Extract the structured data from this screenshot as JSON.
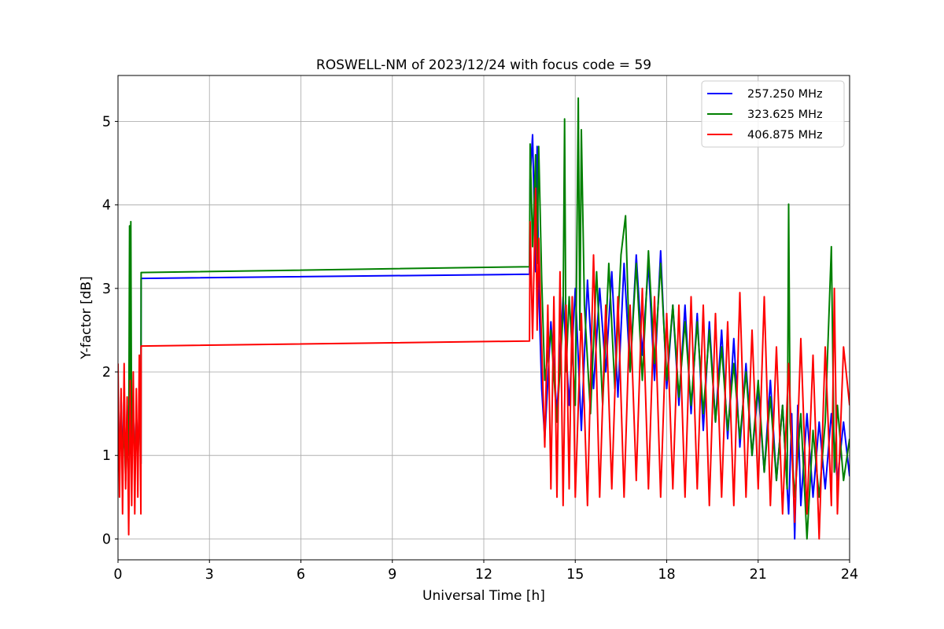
{
  "chart_data": {
    "type": "line",
    "title": "ROSWELL-NM of 2023/12/24 with focus code = 59",
    "xlabel": "Universal Time [h]",
    "ylabel": "Y-factor [dB]",
    "xlim": [
      0,
      24
    ],
    "ylim": [
      -0.25,
      5.55
    ],
    "xticks": [
      0,
      3,
      6,
      9,
      12,
      15,
      18,
      21,
      24
    ],
    "xtick_labels": [
      "0",
      "3",
      "6",
      "9",
      "12",
      "15",
      "18",
      "21",
      "24"
    ],
    "yticks": [
      0,
      1,
      2,
      3,
      4,
      5
    ],
    "ytick_labels": [
      "0",
      "1",
      "2",
      "3",
      "4",
      "5"
    ],
    "grid": true,
    "legend_position": "top-right",
    "series": [
      {
        "name": "257.250 MHz",
        "color": "#0000ff",
        "x": [
          0.0,
          0.05,
          0.1,
          0.15,
          0.2,
          0.25,
          0.3,
          0.35,
          0.4,
          0.45,
          0.5,
          0.55,
          0.6,
          0.65,
          0.7,
          0.75,
          0.76,
          13.5,
          13.52,
          13.6,
          13.7,
          13.75,
          13.8,
          13.9,
          14.0,
          14.2,
          14.4,
          14.6,
          14.8,
          15.0,
          15.2,
          15.4,
          15.6,
          15.8,
          16.0,
          16.2,
          16.4,
          16.6,
          16.8,
          17.0,
          17.2,
          17.4,
          17.6,
          17.8,
          18.0,
          18.2,
          18.4,
          18.6,
          18.8,
          19.0,
          19.2,
          19.4,
          19.6,
          19.8,
          20.0,
          20.2,
          20.4,
          20.6,
          20.8,
          21.0,
          21.2,
          21.4,
          21.6,
          21.8,
          22.0,
          22.1,
          22.2,
          22.3,
          22.4,
          22.6,
          22.8,
          23.0,
          23.2,
          23.4,
          23.6,
          23.8,
          24.0
        ],
        "y": [
          1.6,
          0.9,
          1.7,
          1.0,
          1.5,
          0.8,
          1.6,
          1.1,
          1.4,
          0.9,
          1.7,
          0.8,
          1.5,
          1.0,
          1.6,
          0.9,
          3.12,
          3.17,
          4.3,
          4.84,
          3.2,
          4.7,
          3.0,
          1.8,
          1.2,
          2.6,
          1.5,
          2.9,
          1.6,
          3.0,
          1.3,
          3.1,
          1.8,
          3.0,
          2.0,
          3.2,
          1.7,
          3.3,
          2.0,
          3.4,
          2.2,
          3.3,
          1.9,
          3.45,
          1.8,
          2.8,
          1.6,
          2.8,
          1.5,
          2.7,
          1.3,
          2.6,
          1.4,
          2.5,
          1.2,
          2.4,
          1.1,
          2.1,
          1.0,
          1.8,
          0.8,
          1.9,
          0.7,
          1.6,
          0.3,
          1.5,
          0.0,
          1.6,
          0.4,
          1.5,
          0.5,
          1.4,
          0.6,
          1.5,
          0.7,
          1.4,
          0.75
        ]
      },
      {
        "name": "323.625 MHz",
        "color": "#008000",
        "x": [
          0.0,
          0.05,
          0.1,
          0.15,
          0.2,
          0.25,
          0.3,
          0.35,
          0.38,
          0.4,
          0.42,
          0.45,
          0.5,
          0.55,
          0.6,
          0.65,
          0.7,
          0.75,
          0.76,
          13.5,
          13.52,
          13.6,
          13.7,
          13.75,
          13.8,
          13.9,
          14.0,
          14.2,
          14.4,
          14.6,
          14.65,
          14.7,
          14.8,
          15.0,
          15.1,
          15.15,
          15.2,
          15.3,
          15.5,
          15.7,
          15.9,
          16.1,
          16.3,
          16.5,
          16.65,
          16.8,
          17.0,
          17.2,
          17.4,
          17.6,
          17.8,
          18.0,
          18.2,
          18.4,
          18.6,
          18.8,
          19.0,
          19.2,
          19.4,
          19.6,
          19.8,
          20.0,
          20.2,
          20.4,
          20.6,
          20.8,
          21.0,
          21.2,
          21.4,
          21.6,
          21.8,
          21.95,
          22.0,
          22.05,
          22.2,
          22.4,
          22.6,
          22.8,
          23.0,
          23.2,
          23.4,
          23.5,
          23.6,
          23.8,
          24.0
        ],
        "y": [
          1.5,
          0.8,
          1.6,
          0.9,
          1.4,
          0.7,
          1.5,
          1.0,
          3.75,
          1.2,
          3.8,
          0.9,
          1.6,
          0.8,
          1.5,
          0.9,
          1.6,
          0.9,
          3.19,
          3.26,
          4.73,
          3.5,
          4.6,
          3.3,
          4.7,
          3.1,
          1.9,
          2.5,
          1.4,
          2.7,
          5.03,
          2.0,
          2.9,
          1.6,
          5.28,
          2.5,
          4.9,
          2.8,
          1.5,
          3.2,
          1.6,
          3.3,
          1.8,
          3.4,
          3.87,
          2.0,
          3.3,
          1.9,
          3.45,
          2.1,
          3.3,
          1.9,
          2.8,
          1.7,
          2.6,
          1.6,
          2.6,
          1.5,
          2.5,
          1.4,
          2.3,
          1.3,
          2.1,
          1.2,
          2.0,
          1.0,
          1.9,
          0.8,
          1.7,
          0.7,
          1.6,
          0.6,
          4.01,
          1.4,
          0.5,
          1.5,
          0.0,
          1.3,
          0.5,
          1.4,
          3.5,
          0.8,
          1.6,
          0.7,
          1.2
        ]
      },
      {
        "name": "406.875 MHz",
        "color": "#ff0000",
        "x": [
          0.0,
          0.05,
          0.1,
          0.15,
          0.2,
          0.25,
          0.3,
          0.35,
          0.4,
          0.45,
          0.5,
          0.55,
          0.6,
          0.65,
          0.7,
          0.75,
          0.76,
          13.5,
          13.52,
          13.6,
          13.7,
          13.75,
          13.8,
          13.9,
          14.0,
          14.1,
          14.2,
          14.3,
          14.4,
          14.5,
          14.6,
          14.7,
          14.8,
          14.9,
          15.0,
          15.2,
          15.4,
          15.6,
          15.8,
          16.0,
          16.2,
          16.4,
          16.6,
          16.8,
          17.0,
          17.2,
          17.4,
          17.6,
          17.8,
          18.0,
          18.2,
          18.4,
          18.6,
          18.8,
          19.0,
          19.2,
          19.4,
          19.6,
          19.8,
          20.0,
          20.2,
          20.4,
          20.6,
          20.8,
          21.0,
          21.2,
          21.4,
          21.6,
          21.8,
          22.0,
          22.2,
          22.4,
          22.6,
          22.8,
          23.0,
          23.2,
          23.4,
          23.5,
          23.6,
          23.8,
          24.0
        ],
        "y": [
          2.1,
          0.5,
          1.8,
          0.3,
          2.1,
          0.6,
          1.7,
          0.05,
          1.9,
          0.4,
          2.0,
          0.3,
          1.8,
          0.5,
          2.2,
          0.3,
          2.31,
          2.37,
          3.8,
          2.4,
          4.2,
          2.5,
          3.6,
          2.3,
          1.1,
          2.8,
          0.6,
          2.9,
          0.5,
          3.2,
          0.4,
          2.8,
          0.6,
          2.9,
          0.5,
          2.7,
          0.4,
          3.4,
          0.5,
          2.8,
          0.6,
          2.9,
          0.5,
          2.8,
          0.7,
          3.0,
          0.6,
          2.9,
          0.5,
          2.7,
          0.6,
          2.8,
          0.5,
          2.9,
          0.6,
          2.8,
          0.4,
          2.7,
          0.5,
          2.6,
          0.4,
          2.95,
          0.5,
          2.5,
          0.6,
          2.9,
          0.4,
          2.3,
          0.3,
          2.1,
          0.2,
          2.4,
          0.3,
          2.2,
          0.0,
          2.3,
          0.4,
          3.0,
          0.3,
          2.3,
          1.6
        ]
      }
    ]
  }
}
